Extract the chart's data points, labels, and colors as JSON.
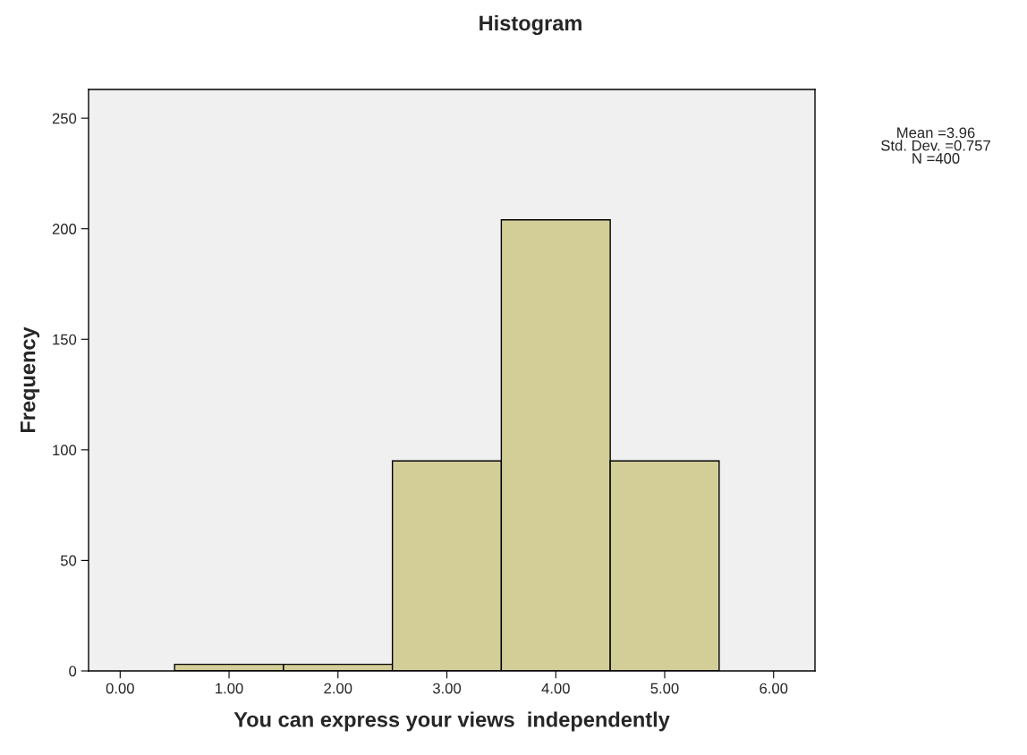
{
  "chart_data": {
    "type": "histogram",
    "title": "Histogram",
    "xlabel": "You can express your views  independently",
    "ylabel": "Frequency",
    "bins": [
      0.5,
      1.5,
      2.5,
      3.5,
      4.5,
      5.5
    ],
    "values": [
      3,
      3,
      95,
      204,
      95
    ],
    "color": "#d3ce97",
    "xlim": [
      -0.29,
      6.38
    ],
    "ylim": [
      0,
      263
    ],
    "xticks": [
      {
        "value": 0,
        "label": "0.00"
      },
      {
        "value": 1,
        "label": "1.00"
      },
      {
        "value": 2,
        "label": "2.00"
      },
      {
        "value": 3,
        "label": "3.00"
      },
      {
        "value": 4,
        "label": "4.00"
      },
      {
        "value": 5,
        "label": "5.00"
      },
      {
        "value": 6,
        "label": "6.00"
      }
    ],
    "yticks": [
      0,
      50,
      100,
      150,
      200,
      250
    ],
    "grid": false,
    "annotations": [
      "Mean =3.96\nStd. Dev. =0.757\nN =400"
    ]
  }
}
